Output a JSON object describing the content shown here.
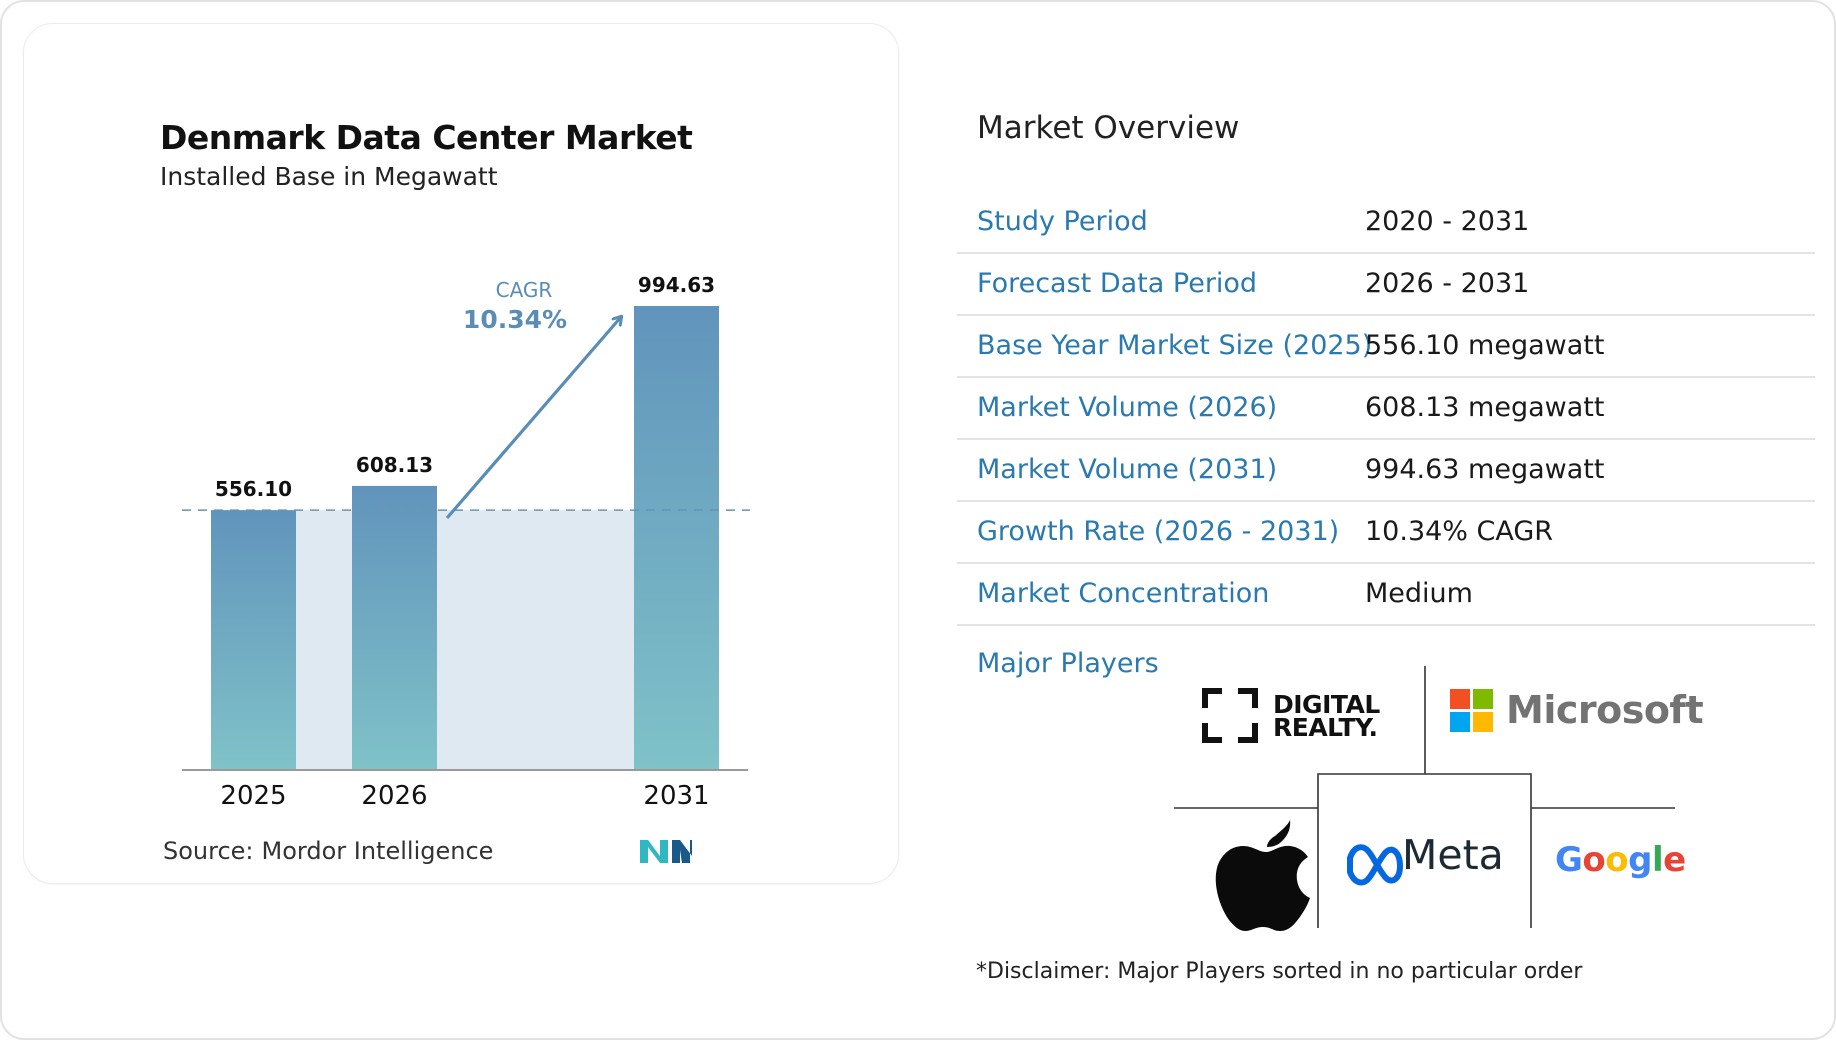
{
  "chart_data": {
    "type": "bar",
    "title": "Denmark Data Center Market",
    "subtitle": "Installed Base in Megawatt",
    "categories": [
      "2025",
      "2026",
      "2031"
    ],
    "values": [
      556.1,
      608.13,
      994.63
    ],
    "value_labels": [
      "556.10",
      "608.13",
      "994.63"
    ],
    "cagr_label": "CAGR",
    "cagr_value": "10.34%",
    "baseline_value": 556.1,
    "ylim": [
      0,
      994.63
    ],
    "grid": false,
    "colors": {
      "bar_top": "#6194bc",
      "bar_bottom": "#7fc2c8",
      "band": "#dfe9f2",
      "cagr": "#5a8db6"
    }
  },
  "source": {
    "label": "Source:",
    "name": "Mordor Intelligence"
  },
  "overview": {
    "title": "Market Overview",
    "rows": [
      {
        "label": "Study Period",
        "value": "2020 - 2031"
      },
      {
        "label": "Forecast Data Period",
        "value": "2026 - 2031"
      },
      {
        "label": "Base Year Market Size (2025)",
        "value": "556.10 megawatt"
      },
      {
        "label": "Market Volume (2026)",
        "value": "608.13 megawatt"
      },
      {
        "label": "Market Volume (2031)",
        "value": "994.63 megawatt"
      },
      {
        "label": "Growth Rate (2026 - 2031)",
        "value": "10.34% CAGR"
      },
      {
        "label": "Market Concentration",
        "value": "Medium"
      }
    ]
  },
  "players": {
    "label": "Major Players",
    "logos": {
      "digital_realty_line1": "DIGITAL",
      "digital_realty_line2": "REALTY.",
      "microsoft": "Microsoft",
      "meta": "Meta",
      "google": [
        "G",
        "o",
        "o",
        "g",
        "l",
        "e"
      ]
    },
    "google_colors": [
      "#4285F4",
      "#EA4335",
      "#FBBC05",
      "#4285F4",
      "#34A853",
      "#EA4335"
    ],
    "microsoft_colors": [
      "#F25022",
      "#7FBA00",
      "#00A4EF",
      "#FFB900"
    ]
  },
  "disclaimer": "*Disclaimer: Major Players sorted in no particular order"
}
